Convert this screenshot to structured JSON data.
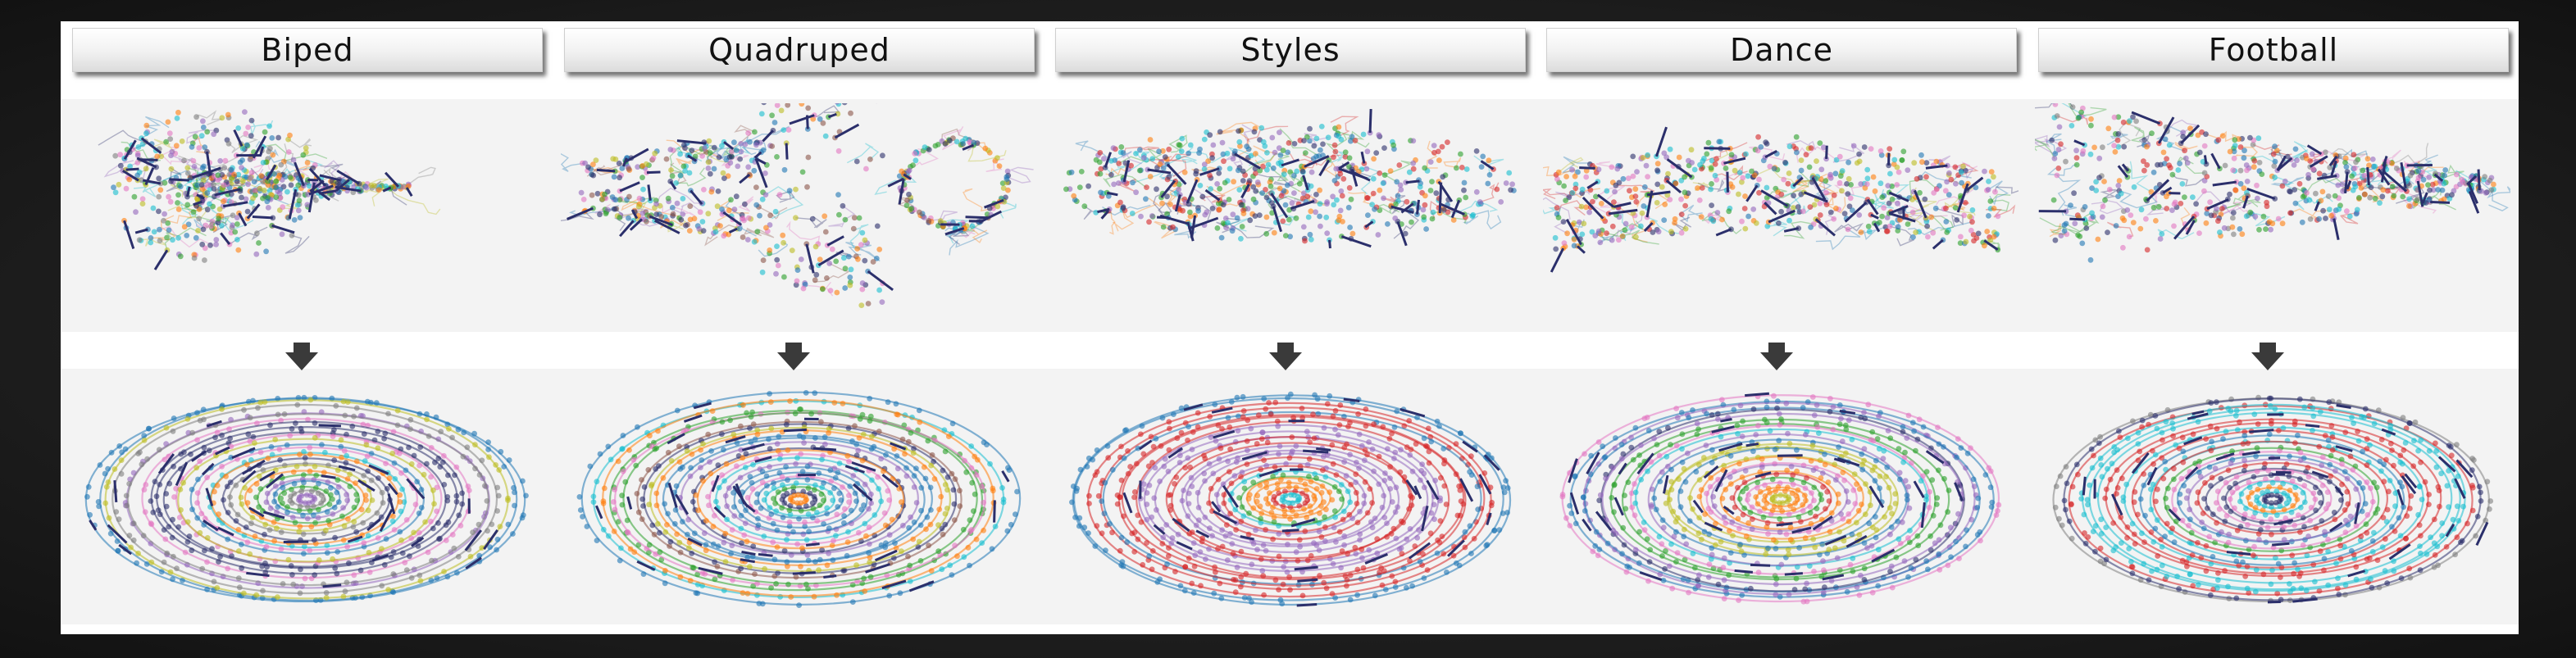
{
  "columns": [
    {
      "title": "Biped",
      "colors": [
        "#1f77b4",
        "#17becf",
        "#2ca02c",
        "#ff7f0e",
        "#bcbd22",
        "#9467bd",
        "#7f7f7f",
        "#e377c2",
        "#2b2f6b"
      ],
      "dominant": "#2ca02c"
    },
    {
      "title": "Quadruped",
      "colors": [
        "#1f77b4",
        "#ff7f0e",
        "#2ca02c",
        "#e377c2",
        "#9467bd",
        "#bcbd22",
        "#17becf",
        "#8c564b",
        "#2b2f6b"
      ],
      "dominant": "#1f77b4"
    },
    {
      "title": "Styles",
      "colors": [
        "#1f77b4",
        "#d62728",
        "#ff7f0e",
        "#9467bd",
        "#2ca02c",
        "#17becf",
        "#2b2f6b"
      ],
      "dominant": "#9467bd"
    },
    {
      "title": "Dance",
      "colors": [
        "#e377c2",
        "#1f77b4",
        "#9467bd",
        "#bcbd22",
        "#ff7f0e",
        "#17becf",
        "#d62728",
        "#2ca02c",
        "#2b2f6b"
      ],
      "dominant": "#e377c2"
    },
    {
      "title": "Football",
      "colors": [
        "#7f7f7f",
        "#e377c2",
        "#9467bd",
        "#1f77b4",
        "#ff7f0e",
        "#2ca02c",
        "#17becf",
        "#d62728",
        "#2b2f6b"
      ],
      "dominant": "#e377c2"
    }
  ],
  "colors": {
    "background": "#1e1e1e",
    "band": "#f3f3f3",
    "arrow": "#3a3a3a",
    "vector": "#2b2f6b"
  }
}
